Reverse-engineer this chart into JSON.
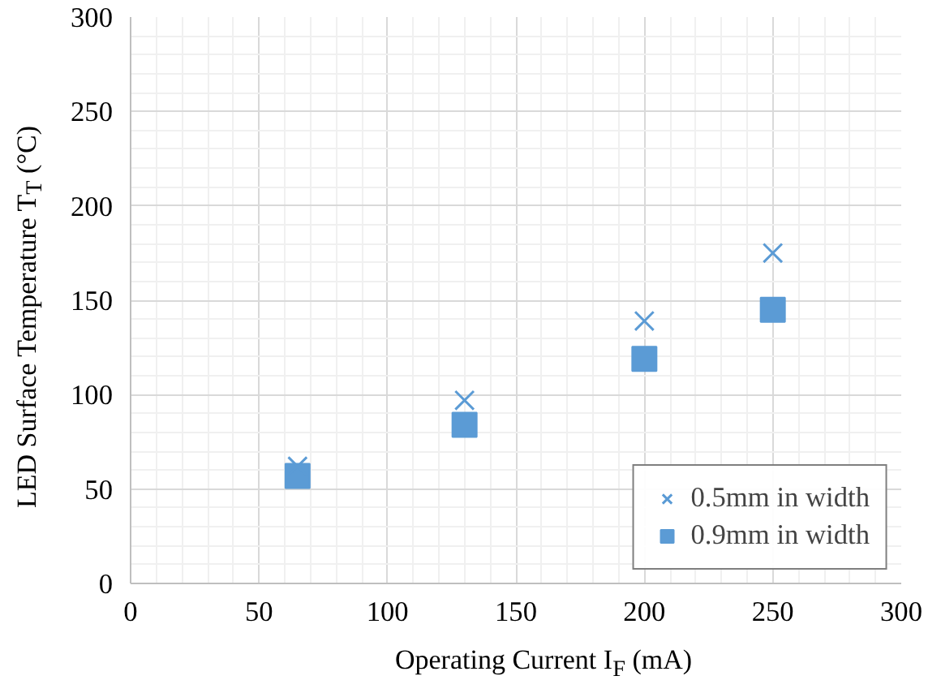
{
  "chart_data": {
    "type": "scatter",
    "xlabel": "Operating Current I$_{F}$ (mA)",
    "ylabel": "LED Surface Temperature T$_{T}$ (°C)",
    "x": [
      65,
      130,
      200,
      250
    ],
    "series": [
      {
        "name": "0.5mm in width",
        "color": "#5b9bd5",
        "marker": "cross",
        "values": [
          62,
          97,
          139,
          175
        ]
      },
      {
        "name": "0.9mm in width",
        "color": "#5b9bd5",
        "marker": "square",
        "values": [
          57,
          84,
          119,
          145
        ]
      }
    ],
    "xlim": [
      0,
      300
    ],
    "ylim": [
      0,
      300
    ],
    "xticks": [
      0,
      50,
      100,
      150,
      200,
      250,
      300
    ],
    "yticks": [
      0,
      50,
      100,
      150,
      200,
      250,
      300
    ],
    "grid": true,
    "legend": "bottom right"
  }
}
